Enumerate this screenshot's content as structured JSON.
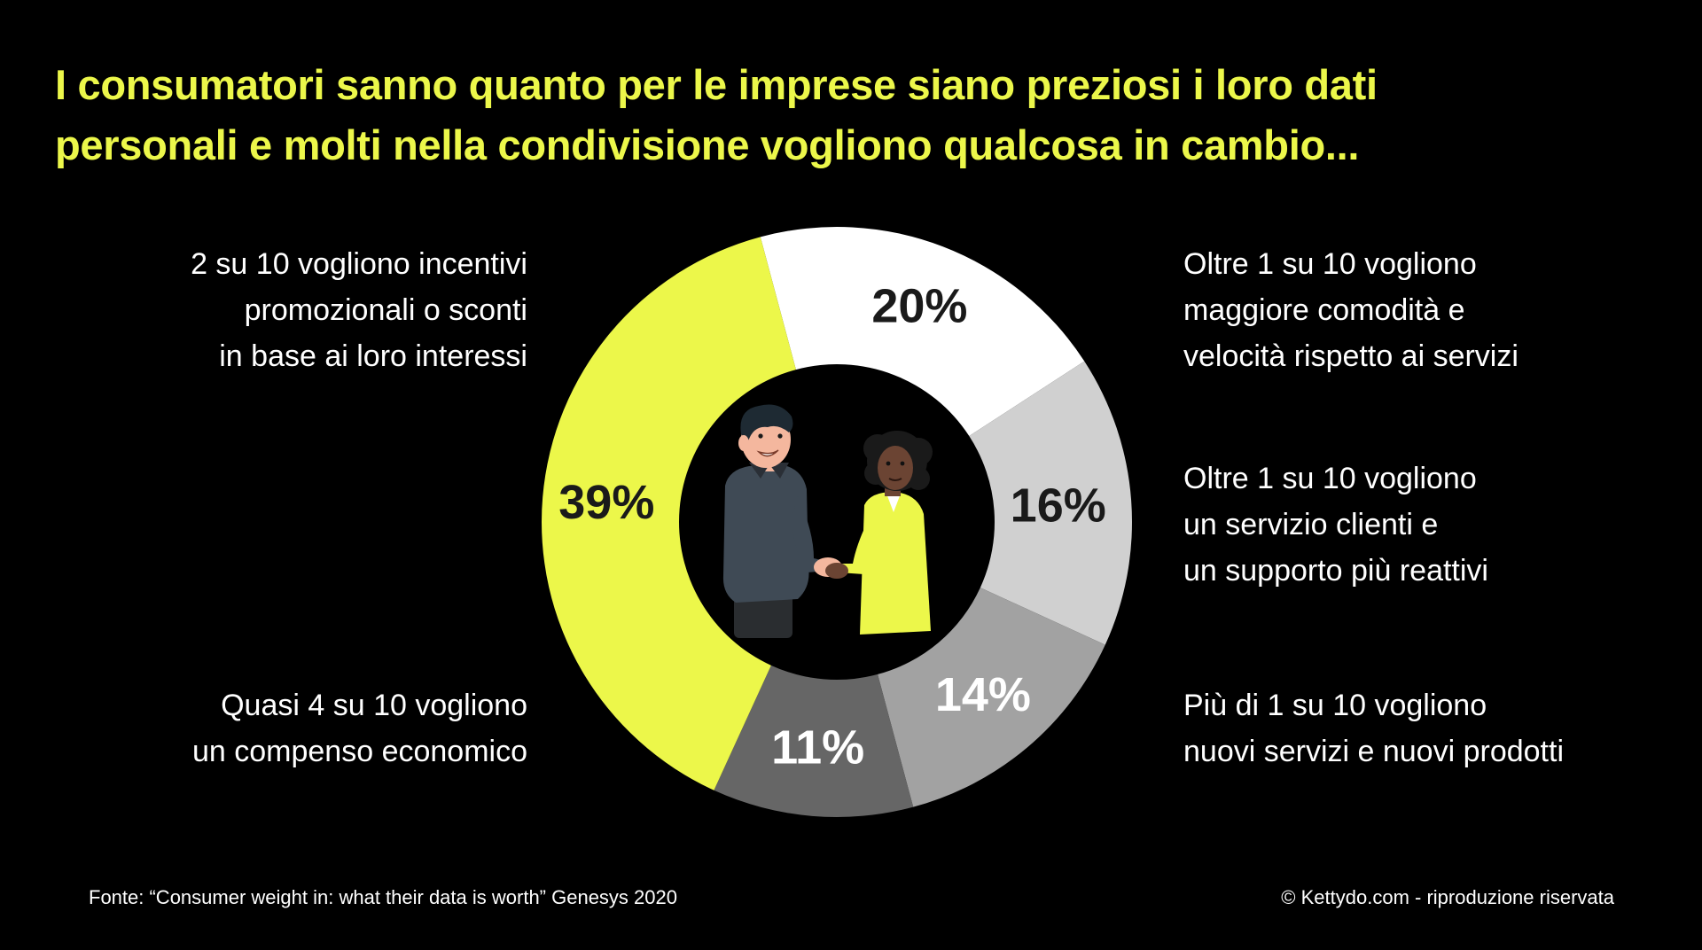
{
  "title": {
    "line1": "I consumatori sanno quanto per le imprese siano preziosi i loro dati",
    "line2": "personali e molti nella condivisione vogliono qualcosa in cambio..."
  },
  "labels": {
    "incentivi": [
      "2 su 10 vogliono incentivi",
      "promozionali o sconti",
      "in base ai loro interessi"
    ],
    "comodita": [
      "Oltre 1 su 10 vogliono",
      "maggiore comodità e",
      "velocità rispetto ai servizi"
    ],
    "servizio": [
      "Oltre 1 su 10 vogliono",
      "un servizio clienti e",
      "un supporto  più reattivi"
    ],
    "nuovi": [
      "Più di 1 su 10 vogliono",
      "nuovi servizi e nuovi prodotti"
    ],
    "compenso": [
      "Quasi 4 su 10 vogliono",
      "un compenso economico"
    ]
  },
  "footer": {
    "source": "Fonte: “Consumer weight in: what their data is worth” Genesys 2020",
    "copyright": "© Kettydo.com - riproduzione riservata"
  },
  "colors": {
    "background": "#000000",
    "accent": "#ecf74a"
  },
  "chart_data": {
    "type": "pie",
    "donut": true,
    "categories": [
      "2 su 10 vogliono incentivi promozionali o sconti in base ai loro interessi",
      "Oltre 1 su 10 vogliono maggiore comodità e velocità rispetto ai servizi",
      "Oltre 1 su 10 vogliono un servizio clienti e un supporto più reattivi",
      "Più di 1 su 10 vogliono nuovi servizi e nuovi prodotti",
      "Quasi 4 su 10 vogliono un compenso economico"
    ],
    "values": [
      20,
      16,
      14,
      11,
      39
    ],
    "data_labels": [
      "20%",
      "16%",
      "14%",
      "11%",
      "39%"
    ],
    "colors": [
      "#ffffff",
      "#d0d0d0",
      "#a2a2a2",
      "#666666",
      "#ecf74a"
    ],
    "label_colors": [
      "#1a1a1a",
      "#1a1a1a",
      "#ffffff",
      "#ffffff",
      "#1a1a1a"
    ],
    "start_angle_deg": -15
  },
  "illustration": {
    "name": "handshake-illustration"
  }
}
